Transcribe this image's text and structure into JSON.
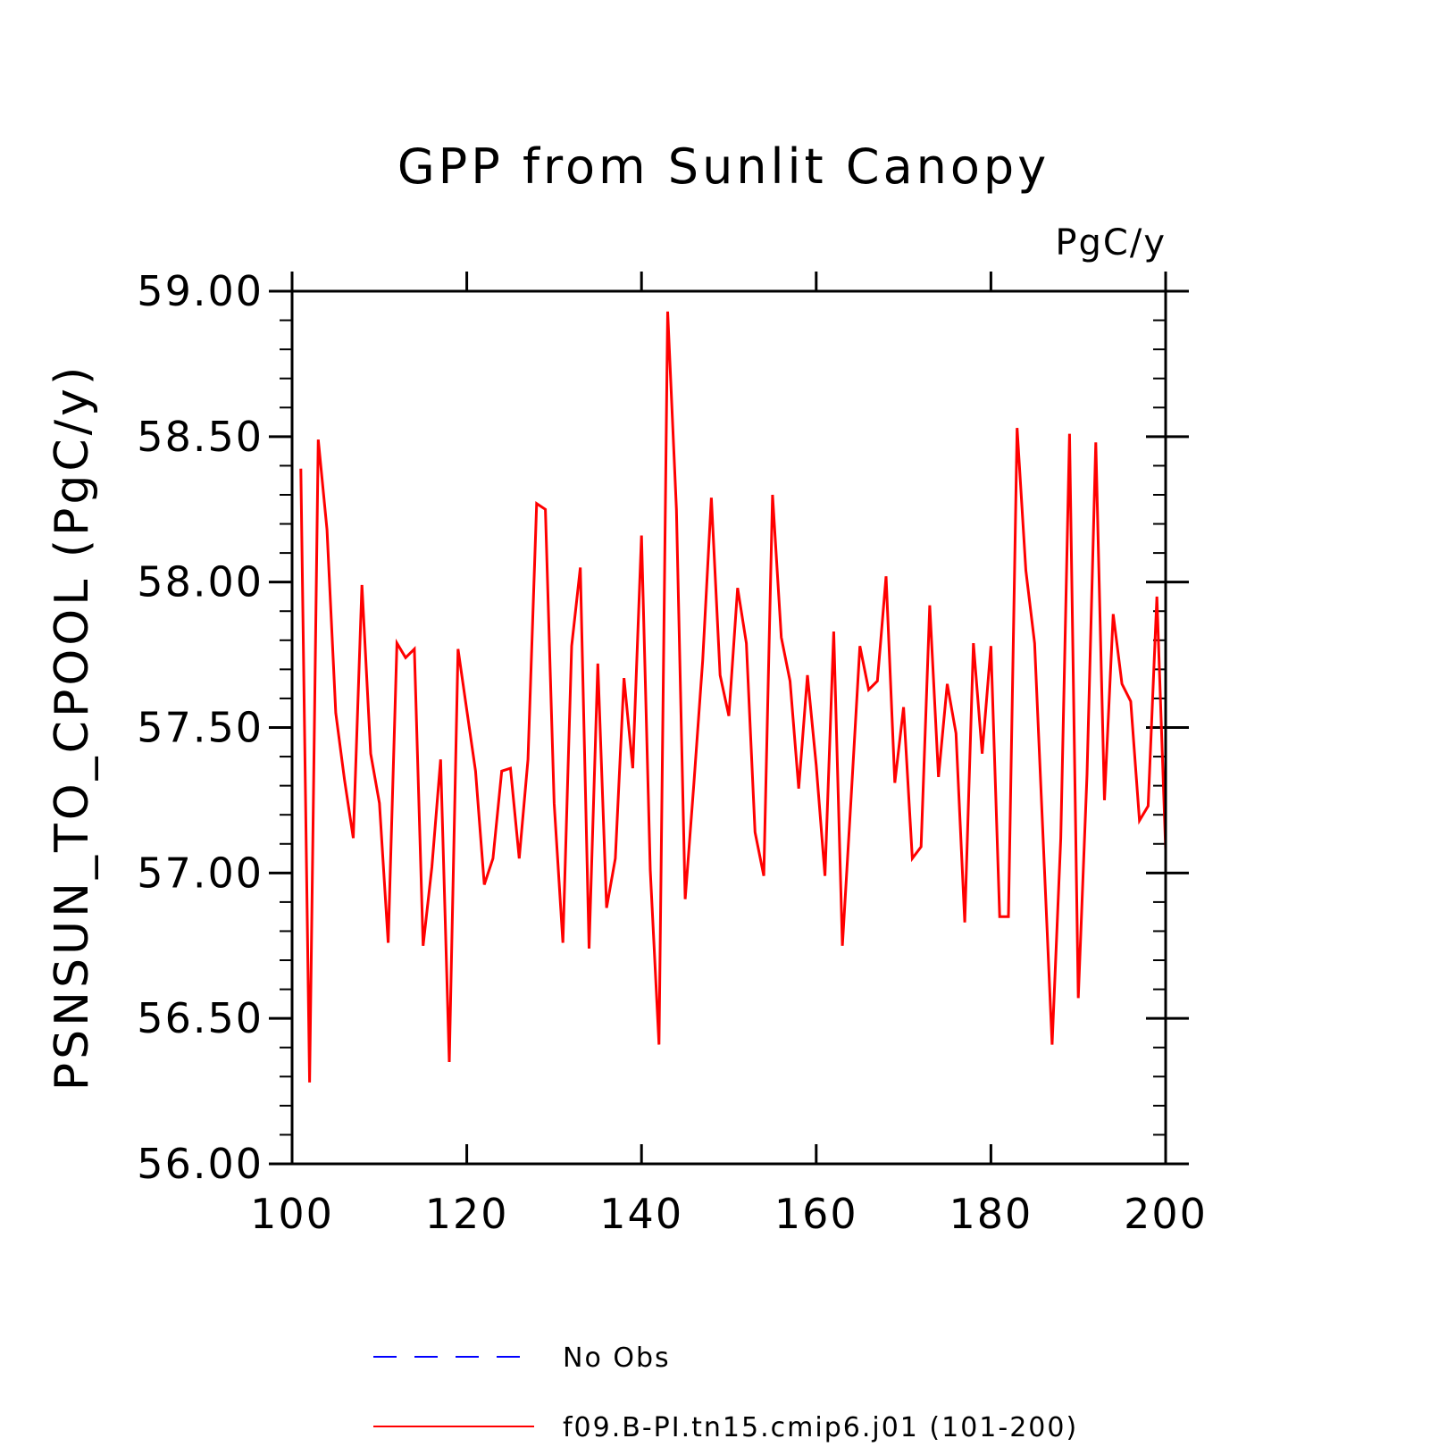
{
  "chart_data": {
    "type": "line",
    "title": "GPP from Sunlit Canopy",
    "units": "PgC/y",
    "xlabel": "",
    "ylabel": "PSNSUN_TO_CPOOL  (PgC/y)",
    "xlim": [
      100,
      200
    ],
    "ylim": [
      56.0,
      59.0
    ],
    "xticks": [
      "100",
      "120",
      "140",
      "160",
      "180",
      "200"
    ],
    "yticks": [
      "56.00",
      "56.50",
      "57.00",
      "57.50",
      "58.00",
      "58.50",
      "59.00"
    ],
    "legend": [
      {
        "label": "No Obs",
        "color": "#0000ff",
        "style": "dashed"
      },
      {
        "label": "f09.B-PI.tn15.cmip6.j01 (101-200)",
        "color": "#ff0000",
        "style": "solid"
      }
    ],
    "series": [
      {
        "name": "f09.B-PI.tn15.cmip6.j01 (101-200)",
        "color": "#ff0000",
        "x": [
          101,
          102,
          103,
          104,
          105,
          106,
          107,
          108,
          109,
          110,
          111,
          112,
          113,
          114,
          115,
          116,
          117,
          118,
          119,
          120,
          121,
          122,
          123,
          124,
          125,
          126,
          127,
          128,
          129,
          130,
          131,
          132,
          133,
          134,
          135,
          136,
          137,
          138,
          139,
          140,
          141,
          142,
          143,
          144,
          145,
          146,
          147,
          148,
          149,
          150,
          151,
          152,
          153,
          154,
          155,
          156,
          157,
          158,
          159,
          160,
          161,
          162,
          163,
          164,
          165,
          166,
          167,
          168,
          169,
          170,
          171,
          172,
          173,
          174,
          175,
          176,
          177,
          178,
          179,
          180,
          181,
          182,
          183,
          184,
          185,
          186,
          187,
          188,
          189,
          190,
          191,
          192,
          193,
          194,
          195,
          196,
          197,
          198,
          199,
          200
        ],
        "values": [
          58.39,
          56.28,
          58.49,
          58.18,
          57.55,
          57.32,
          57.12,
          57.99,
          57.41,
          57.24,
          56.76,
          57.79,
          57.74,
          57.77,
          56.75,
          57.02,
          57.39,
          56.35,
          57.77,
          57.56,
          57.35,
          56.96,
          57.05,
          57.35,
          57.36,
          57.05,
          57.39,
          58.27,
          58.25,
          57.24,
          56.76,
          57.78,
          58.05,
          56.74,
          57.72,
          56.88,
          57.05,
          57.67,
          57.36,
          58.16,
          57.01,
          56.41,
          58.93,
          58.25,
          56.91,
          57.31,
          57.73,
          58.29,
          57.68,
          57.54,
          57.98,
          57.79,
          57.14,
          56.99,
          58.3,
          57.81,
          57.66,
          57.29,
          57.68,
          57.37,
          56.99,
          57.83,
          56.75,
          57.26,
          57.78,
          57.63,
          57.66,
          58.02,
          57.31,
          57.57,
          57.05,
          57.09,
          57.92,
          57.33,
          57.65,
          57.48,
          56.83,
          57.79,
          57.41,
          57.78,
          56.85,
          56.85,
          58.53,
          58.04,
          57.79,
          57.1,
          56.41,
          57.12,
          58.51,
          56.57,
          57.34,
          58.48,
          57.25,
          57.89,
          57.65,
          57.59,
          57.18,
          57.23,
          57.95,
          57.08
        ]
      }
    ]
  }
}
